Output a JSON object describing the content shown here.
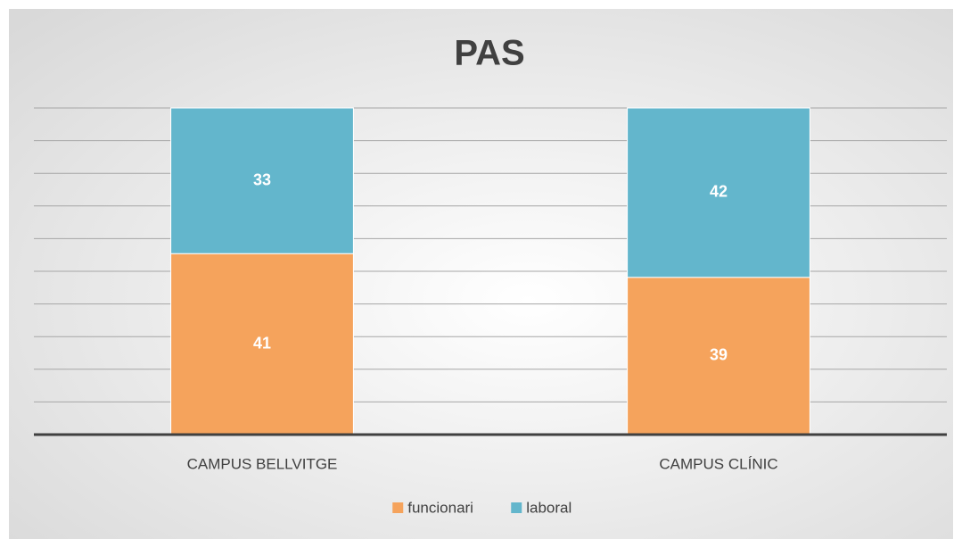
{
  "chart_data": {
    "type": "bar",
    "stacking": "percent",
    "title": "PAS",
    "categories": [
      "CAMPUS BELLVITGE",
      "CAMPUS CLÍNIC"
    ],
    "series": [
      {
        "name": "funcionari",
        "color": "#f5a35c",
        "values": [
          41,
          39
        ]
      },
      {
        "name": "laboral",
        "color": "#63b6cc",
        "values": [
          33,
          42
        ]
      }
    ],
    "ylim": [
      0,
      100
    ],
    "yticks": [
      0,
      10,
      20,
      30,
      40,
      50,
      60,
      70,
      80,
      90,
      100
    ],
    "grid": true,
    "legend": "bottom"
  }
}
